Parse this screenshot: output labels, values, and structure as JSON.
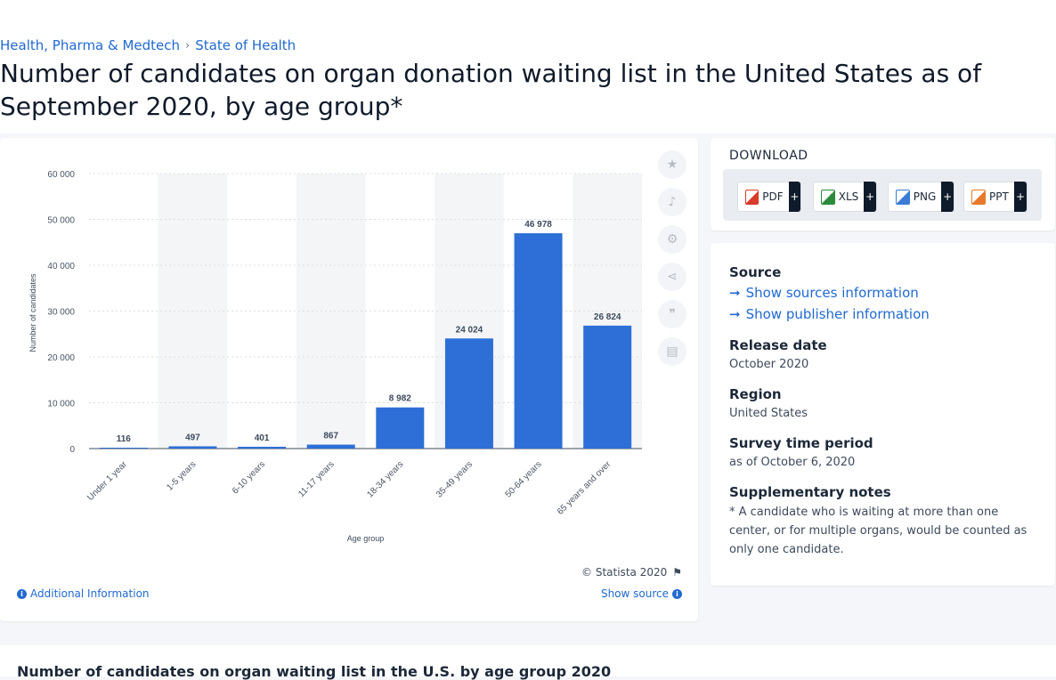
{
  "breadcrumb": [
    "Health, Pharma & Medtech",
    "State of Health"
  ],
  "page_title": "Number of candidates on organ donation waiting list in the United States as of September 2020, by age group*",
  "colors": {
    "bar": "#2d6fd6",
    "accent": "#2169d1",
    "band": "#f4f5f7"
  },
  "chart_data": {
    "type": "bar",
    "categories": [
      "Under 1 year",
      "1-5 years",
      "6-10 years",
      "11-17 years",
      "18-34 years",
      "35-49 years",
      "50-64 years",
      "65 years and over"
    ],
    "values": [
      116,
      497,
      401,
      867,
      8982,
      24024,
      46978,
      26824
    ],
    "value_labels": [
      "116",
      "497",
      "401",
      "867",
      "8 982",
      "24 024",
      "46 978",
      "26 824"
    ],
    "xlabel": "Age group",
    "ylabel": "Number of candidates",
    "ylim": [
      0,
      60000
    ],
    "yticks": [
      0,
      10000,
      20000,
      30000,
      40000,
      50000,
      60000
    ],
    "ytick_labels": [
      "0",
      "10 000",
      "20 000",
      "30 000",
      "40 000",
      "50 000",
      "60 000"
    ],
    "grid": true,
    "legend": "none"
  },
  "side_tools": [
    {
      "icon": "star-icon",
      "glyph": "★"
    },
    {
      "icon": "bell-icon",
      "glyph": "♪"
    },
    {
      "icon": "gear-icon",
      "glyph": "⚙"
    },
    {
      "icon": "share-icon",
      "glyph": "⋖"
    },
    {
      "icon": "quote-icon",
      "glyph": "❞"
    },
    {
      "icon": "print-icon",
      "glyph": "▤"
    }
  ],
  "chart_footer": {
    "copyright": "© Statista 2020",
    "additional_info": "Additional Information",
    "show_source": "Show source"
  },
  "download": {
    "title": "DOWNLOAD",
    "buttons": [
      {
        "label": "PDF",
        "color": "#d93b2b"
      },
      {
        "label": "XLS",
        "color": "#2d8a3c"
      },
      {
        "label": "PNG",
        "color": "#3a7bd5"
      },
      {
        "label": "PPT",
        "color": "#e8792b"
      }
    ],
    "plus": "+"
  },
  "info": {
    "source_label": "Source",
    "show_sources": "Show sources information",
    "show_publisher": "Show publisher information",
    "release_label": "Release date",
    "release_value": "October 2020",
    "region_label": "Region",
    "region_value": "United States",
    "survey_label": "Survey time period",
    "survey_value": "as of October 6, 2020",
    "notes_label": "Supplementary notes",
    "notes_value": "* A candidate who is waiting at more than one center, or for multiple organs, would be counted as only one candidate."
  },
  "bottom_title": "Number of candidates on organ waiting list in the U.S. by age group 2020"
}
